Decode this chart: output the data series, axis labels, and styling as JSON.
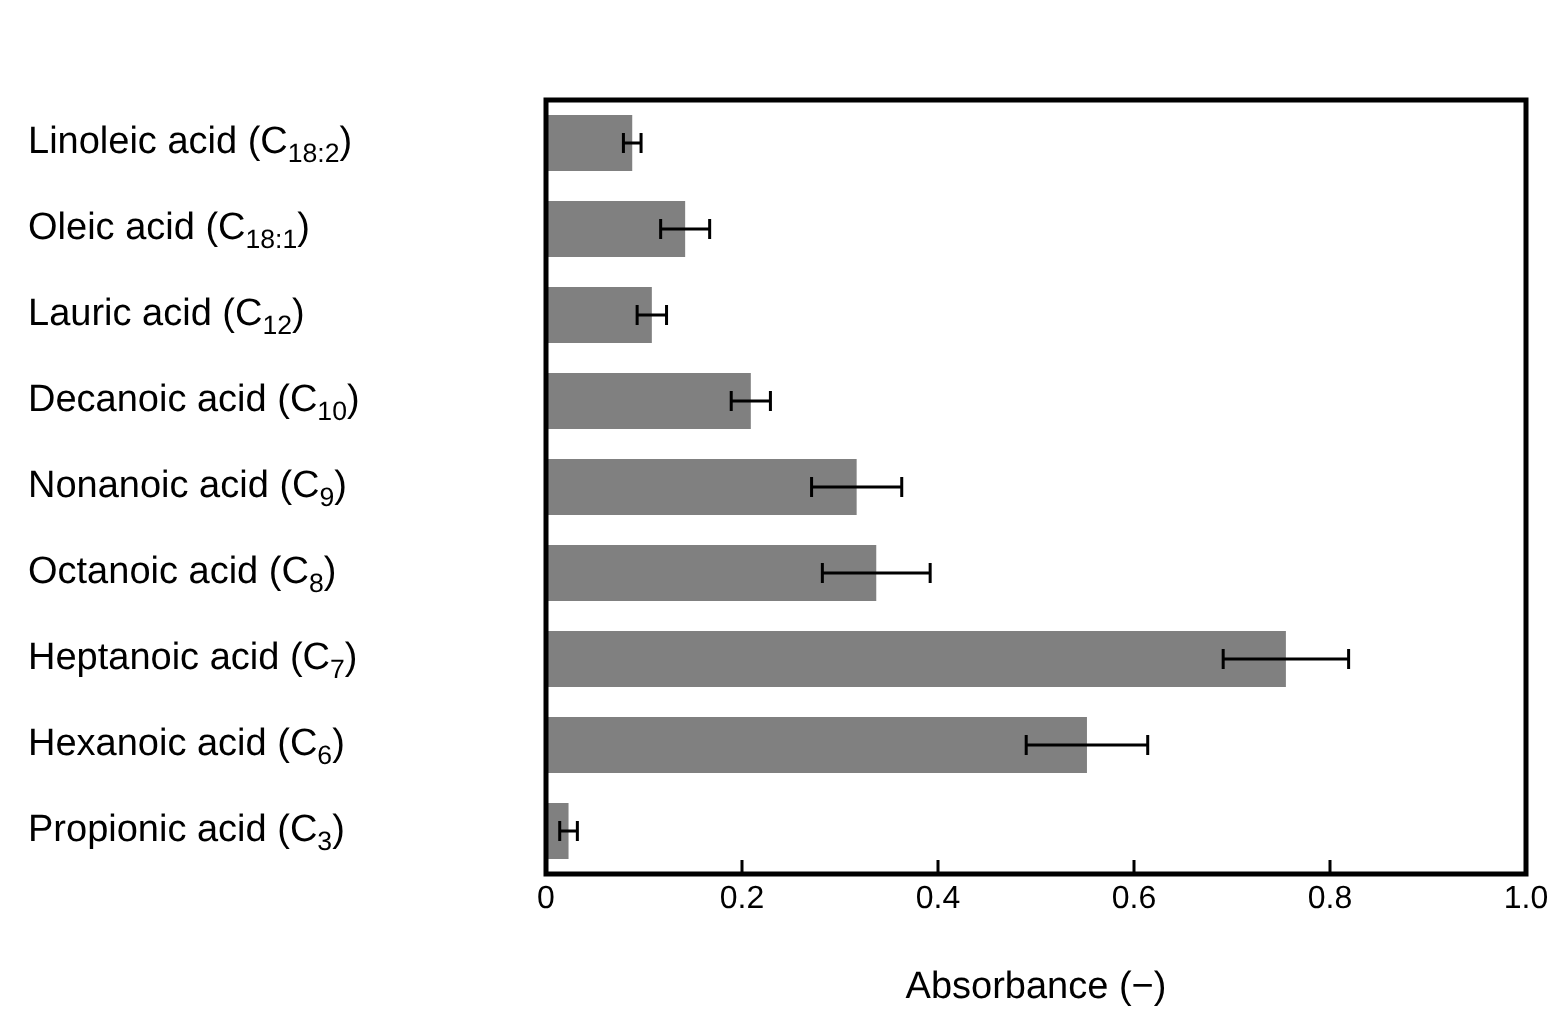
{
  "chart_data": {
    "type": "bar",
    "orientation": "horizontal",
    "xlabel": "Absorbance (−)",
    "categories": [
      "Linoleic acid (C$_{18:2}$)",
      "Oleic acid (C$_{18:1}$)",
      "Lauric acid (C$_{12}$)",
      "Decanoic acid (C$_{10}$)",
      "Nonanoic acid (C$_{9}$)",
      "Octanoic acid (C$_{8}$)",
      "Heptanoic acid (C$_{7}$)",
      "Hexanoic acid (C$_{6}$)",
      "Propionic acid (C$_{3}$)"
    ],
    "values": [
      0.088,
      0.142,
      0.108,
      0.209,
      0.317,
      0.337,
      0.755,
      0.552,
      0.023
    ],
    "errors": [
      0.009,
      0.025,
      0.015,
      0.02,
      0.046,
      0.055,
      0.064,
      0.062,
      0.009
    ],
    "color": "#808080",
    "xlim": [
      0,
      1.0
    ],
    "xticks": [
      0,
      0.2,
      0.4,
      0.6,
      0.8,
      {
        "value": 1.0,
        "label": "1.0"
      }
    ],
    "grid": false,
    "legend": false
  }
}
